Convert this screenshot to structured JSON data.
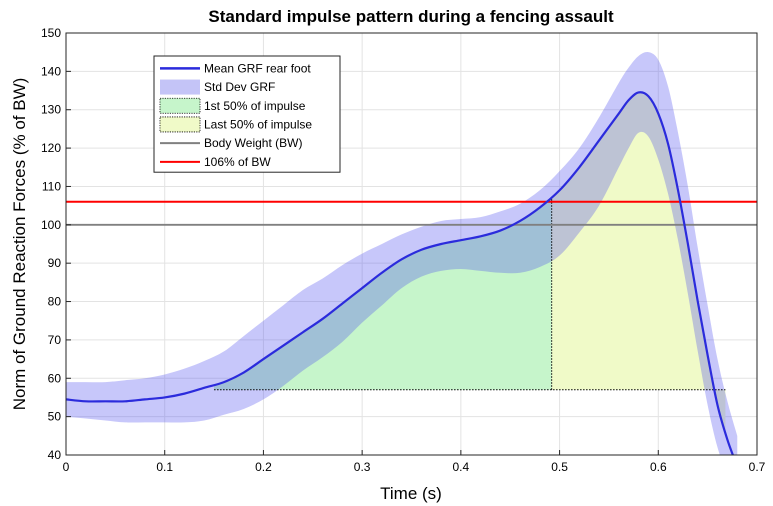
{
  "chart_data": {
    "type": "line",
    "title": "Standard impulse pattern during a fencing assault",
    "xlabel": "Time (s)",
    "ylabel": "Norm of Ground Reaction Forces (% of BW)",
    "xlim": [
      0,
      0.7
    ],
    "ylim": [
      40,
      150
    ],
    "xticks": [
      "0",
      "0.1",
      "0.2",
      "0.3",
      "0.4",
      "0.5",
      "0.6",
      "0.7"
    ],
    "yticks": [
      "40",
      "50",
      "60",
      "70",
      "80",
      "90",
      "100",
      "110",
      "120",
      "130",
      "140",
      "150"
    ],
    "grid": true,
    "legend_position": "top-left",
    "legend": [
      {
        "label": "Mean GRF rear foot"
      },
      {
        "label": "Std Dev GRF"
      },
      {
        "label": "1st 50% of impulse"
      },
      {
        "label": "Last 50% of impulse"
      },
      {
        "label": "Body Weight (BW)"
      },
      {
        "label": "106% of BW"
      }
    ],
    "series": [
      {
        "name": "Mean GRF rear foot",
        "x": [
          0,
          0.02,
          0.04,
          0.06,
          0.08,
          0.1,
          0.12,
          0.14,
          0.16,
          0.18,
          0.2,
          0.22,
          0.24,
          0.26,
          0.28,
          0.3,
          0.32,
          0.34,
          0.36,
          0.38,
          0.4,
          0.42,
          0.44,
          0.46,
          0.48,
          0.5,
          0.52,
          0.54,
          0.56,
          0.57,
          0.58,
          0.59,
          0.6,
          0.61,
          0.62,
          0.63,
          0.64,
          0.65,
          0.66,
          0.67,
          0.68
        ],
        "y": [
          54.5,
          54,
          54,
          54,
          54.5,
          55,
          56,
          57.5,
          59,
          61.5,
          65,
          68.5,
          72,
          75.5,
          79.5,
          83.5,
          87.5,
          91,
          93.5,
          95,
          96,
          97,
          98.5,
          101,
          104.5,
          109,
          115,
          122,
          129,
          132.5,
          134.5,
          133.5,
          129,
          121,
          109,
          95,
          80,
          66,
          53,
          44,
          37
        ]
      },
      {
        "name": "Std Dev GRF",
        "x": [
          0,
          0.02,
          0.04,
          0.06,
          0.08,
          0.1,
          0.12,
          0.14,
          0.16,
          0.18,
          0.2,
          0.22,
          0.24,
          0.26,
          0.28,
          0.3,
          0.32,
          0.34,
          0.36,
          0.38,
          0.4,
          0.42,
          0.44,
          0.46,
          0.48,
          0.5,
          0.52,
          0.54,
          0.56,
          0.57,
          0.58,
          0.59,
          0.6,
          0.61,
          0.62,
          0.63,
          0.64,
          0.65,
          0.66,
          0.67,
          0.68
        ],
        "upper": [
          59,
          59,
          59,
          59.5,
          60,
          61,
          62.5,
          64.5,
          67,
          71,
          75,
          79,
          83,
          86,
          89.5,
          92.5,
          95,
          97.5,
          99.5,
          101,
          101.5,
          102,
          103.5,
          105.5,
          109,
          114,
          120,
          128,
          137,
          141,
          144,
          145,
          143,
          136,
          124,
          110,
          94,
          79,
          65,
          54,
          45
        ],
        "lower": [
          50,
          49.5,
          49,
          48.5,
          48.5,
          48.5,
          48.5,
          49,
          50.5,
          52,
          54.5,
          58,
          62,
          65.5,
          69.5,
          74.5,
          79,
          83.5,
          86.5,
          88,
          88.5,
          88,
          87.5,
          87.5,
          89,
          92,
          98,
          105,
          115,
          120,
          124,
          123,
          117,
          108,
          96,
          82,
          67,
          53,
          42,
          35,
          30
        ]
      },
      {
        "name": "Body Weight (BW)",
        "y": 100
      },
      {
        "name": "106% of BW",
        "y": 106
      }
    ],
    "impulse": {
      "baseline": 57,
      "start": 0.15,
      "split": 0.492,
      "end": 0.668
    },
    "colors": {
      "mean": "#2b2bdc",
      "std": "#c4c4f7",
      "first_half": "#c6f5cb",
      "last_half": "#f0fac8",
      "bw": "#808080",
      "bw106": "#ff0000"
    }
  }
}
